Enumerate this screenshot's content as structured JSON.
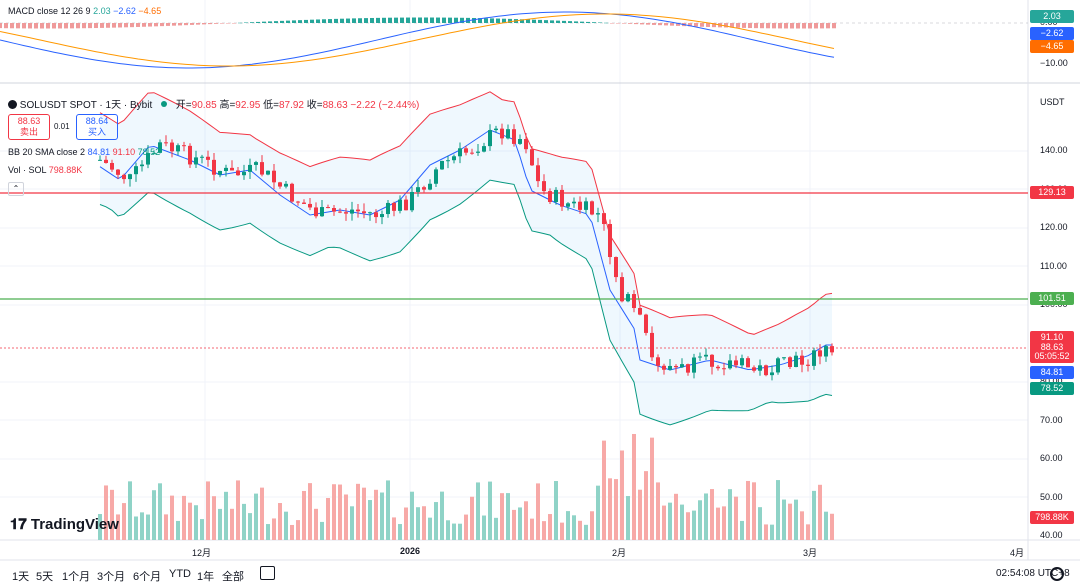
{
  "macd": {
    "title": "MACD",
    "params": "close 12 26 9",
    "v1": "2.03",
    "v2": "−2.62",
    "v3": "−4.65",
    "axis": [
      "0.00",
      "−10.00"
    ],
    "tags": [
      {
        "text": "2.03",
        "color": "#26a69a"
      },
      {
        "text": "−2.62",
        "color": "#2962ff"
      },
      {
        "text": "−4.65",
        "color": "#ff6d00"
      }
    ]
  },
  "symbol": {
    "name": "SOLUSDT SPOT · 1天 · Bybit",
    "ohlc": [
      {
        "k": "开=",
        "v": "90.85"
      },
      {
        "k": "高=",
        "v": "92.95"
      },
      {
        "k": "低=",
        "v": "87.92"
      },
      {
        "k": "收=",
        "v": "88.63"
      }
    ],
    "change": "−2.22 (−2.44%)"
  },
  "trade": {
    "sell_price": "88.63",
    "sell_label": "卖出",
    "spread": "0.01",
    "buy_price": "88.64",
    "buy_label": "买入"
  },
  "bb": {
    "label": "BB 20 SMA close 2",
    "v1": "84.81",
    "v2": "91.10",
    "v3": "78.52"
  },
  "vol": {
    "label": "Vol · SOL",
    "value": "798.88K"
  },
  "currency": "USDT",
  "price_axis": [
    "140.00",
    "130.00",
    "120.00",
    "110.00",
    "100.00",
    "90.00",
    "80.00",
    "70.00",
    "60.00",
    "50.00",
    "40.00"
  ],
  "price_tags": [
    {
      "text": "129.13",
      "color": "#f23645"
    },
    {
      "text": "101.51",
      "color": "#4caf50"
    },
    {
      "text": "91.10",
      "color": "#f23645"
    },
    {
      "text": "88.63",
      "color": "#f23645"
    },
    {
      "text": "05:05:52",
      "color": "#f23645"
    },
    {
      "text": "84.81",
      "color": "#2962ff"
    },
    {
      "text": "78.52",
      "color": "#089981"
    },
    {
      "text": "798.88K",
      "color": "#f23645"
    }
  ],
  "time_axis": [
    "12月",
    "2026",
    "2月",
    "3月",
    "4月"
  ],
  "timeframes": [
    "1天",
    "5天",
    "1个月",
    "3个月",
    "6个月",
    "YTD",
    "1年",
    "全部"
  ],
  "clock": "02:54:08 UTC+8",
  "logo": "TradingView"
}
